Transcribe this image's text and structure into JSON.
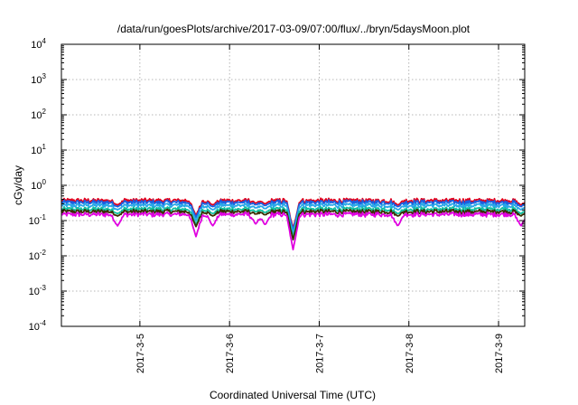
{
  "chart_data": {
    "type": "line",
    "title": "/data/run/goesPlots/archive/2017-03-09/07:00/flux/../bryn/5daysMoon.plot",
    "xlabel": "Coordinated Universal Time (UTC)",
    "ylabel": "cGy/day",
    "yscale": "log",
    "ylim": [
      0.0001,
      10000
    ],
    "xlim": [
      "2017-03-04T03:00",
      "2017-03-09T07:00"
    ],
    "grid": true,
    "y_ticks": [
      {
        "base": "10",
        "exp": "-4",
        "value": 0.0001
      },
      {
        "base": "10",
        "exp": "-3",
        "value": 0.001
      },
      {
        "base": "10",
        "exp": "-2",
        "value": 0.01
      },
      {
        "base": "10",
        "exp": "-1",
        "value": 0.1
      },
      {
        "base": "10",
        "exp": "0",
        "value": 1
      },
      {
        "base": "10",
        "exp": "1",
        "value": 10
      },
      {
        "base": "10",
        "exp": "2",
        "value": 100
      },
      {
        "base": "10",
        "exp": "3",
        "value": 1000
      },
      {
        "base": "10",
        "exp": "4",
        "value": 10000
      }
    ],
    "x_ticks": [
      {
        "label": "2017-3-5",
        "value": "2017-03-05T00:00"
      },
      {
        "label": "2017-3-6",
        "value": "2017-03-06T00:00"
      },
      {
        "label": "2017-3-7",
        "value": "2017-03-07T00:00"
      },
      {
        "label": "2017-3-8",
        "value": "2017-03-08T00:00"
      },
      {
        "label": "2017-3-9",
        "value": "2017-03-09T00:00"
      }
    ],
    "series": [
      {
        "color": "#e3001b",
        "level": 0.37
      },
      {
        "color": "#1a5fe0",
        "level": 0.33
      },
      {
        "color": "#28a8e8",
        "level": 0.27
      },
      {
        "color": "#10c0a0",
        "level": 0.21
      },
      {
        "color": "#3a2e00",
        "level": 0.18
      },
      {
        "color": "#e000e0",
        "level": 0.15
      }
    ],
    "dips": [
      {
        "time": "2017-03-04T18:00",
        "value": 0.07
      },
      {
        "time": "2017-03-05T15:00",
        "value": 0.035
      },
      {
        "time": "2017-03-05T19:30",
        "value": 0.07
      },
      {
        "time": "2017-03-06T07:00",
        "value": 0.08
      },
      {
        "time": "2017-03-06T09:30",
        "value": 0.075
      },
      {
        "time": "2017-03-06T17:00",
        "value": 0.015
      },
      {
        "time": "2017-03-07T21:00",
        "value": 0.07
      },
      {
        "time": "2017-03-09T06:00",
        "value": 0.07
      }
    ]
  }
}
